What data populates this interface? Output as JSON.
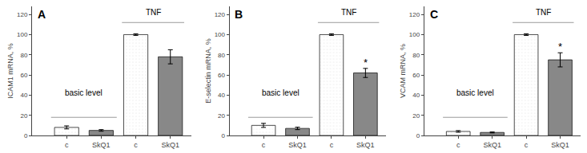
{
  "chart_data": [
    {
      "type": "bar",
      "title": "A",
      "ylabel": "ICAM1 mRNA, %",
      "categories": [
        "c",
        "SkQ1",
        "c",
        "SkQ1"
      ],
      "values": [
        8,
        5,
        100,
        78
      ],
      "errors": [
        1.5,
        0.8,
        0.8,
        7.0
      ],
      "colors": [
        "#f0f0f0",
        "#888888",
        "#f0f0f0",
        "#888888"
      ],
      "ylim": [
        0,
        128
      ],
      "yticks": [
        0,
        20,
        40,
        60,
        80,
        100,
        120
      ],
      "grid": false,
      "annotations": [
        {
          "text": "TNF"
        },
        {
          "text": "basic level"
        }
      ],
      "hlines": [
        {
          "y": 18,
          "color": "#999999"
        },
        {
          "y": 112,
          "color": "#999999"
        }
      ]
    },
    {
      "type": "bar",
      "title": "B",
      "ylabel": "E-selectin mRNA, %",
      "categories": [
        "c",
        "SkQ1",
        "c",
        "SkQ1"
      ],
      "values": [
        10,
        7,
        100,
        62
      ],
      "errors": [
        2.0,
        1.2,
        0.8,
        4.5
      ],
      "colors": [
        "#f0f0f0",
        "#888888",
        "#f0f0f0",
        "#888888"
      ],
      "ylim": [
        0,
        128
      ],
      "yticks": [
        0,
        20,
        40,
        60,
        80,
        100,
        120
      ],
      "grid": false,
      "annotations": [
        {
          "text": "TNF"
        },
        {
          "text": "basic level"
        },
        {
          "text": "*",
          "x": 3
        }
      ],
      "hlines": [
        {
          "y": 18,
          "color": "#999999"
        },
        {
          "y": 112,
          "color": "#999999"
        }
      ]
    },
    {
      "type": "bar",
      "title": "C",
      "ylabel": "VCAM mRNA, %",
      "categories": [
        "c",
        "SkQ1",
        "c",
        "SkQ1"
      ],
      "values": [
        4,
        3,
        100,
        75
      ],
      "errors": [
        0.8,
        0.5,
        0.8,
        7.0
      ],
      "colors": [
        "#f0f0f0",
        "#888888",
        "#f0f0f0",
        "#888888"
      ],
      "ylim": [
        0,
        128
      ],
      "yticks": [
        0,
        20,
        40,
        60,
        80,
        100,
        120
      ],
      "grid": false,
      "annotations": [
        {
          "text": "TNF"
        },
        {
          "text": "basic level"
        },
        {
          "text": "*",
          "x": 3
        }
      ],
      "hlines": [
        {
          "y": 18,
          "color": "#999999"
        },
        {
          "y": 112,
          "color": "#999999"
        }
      ]
    }
  ]
}
